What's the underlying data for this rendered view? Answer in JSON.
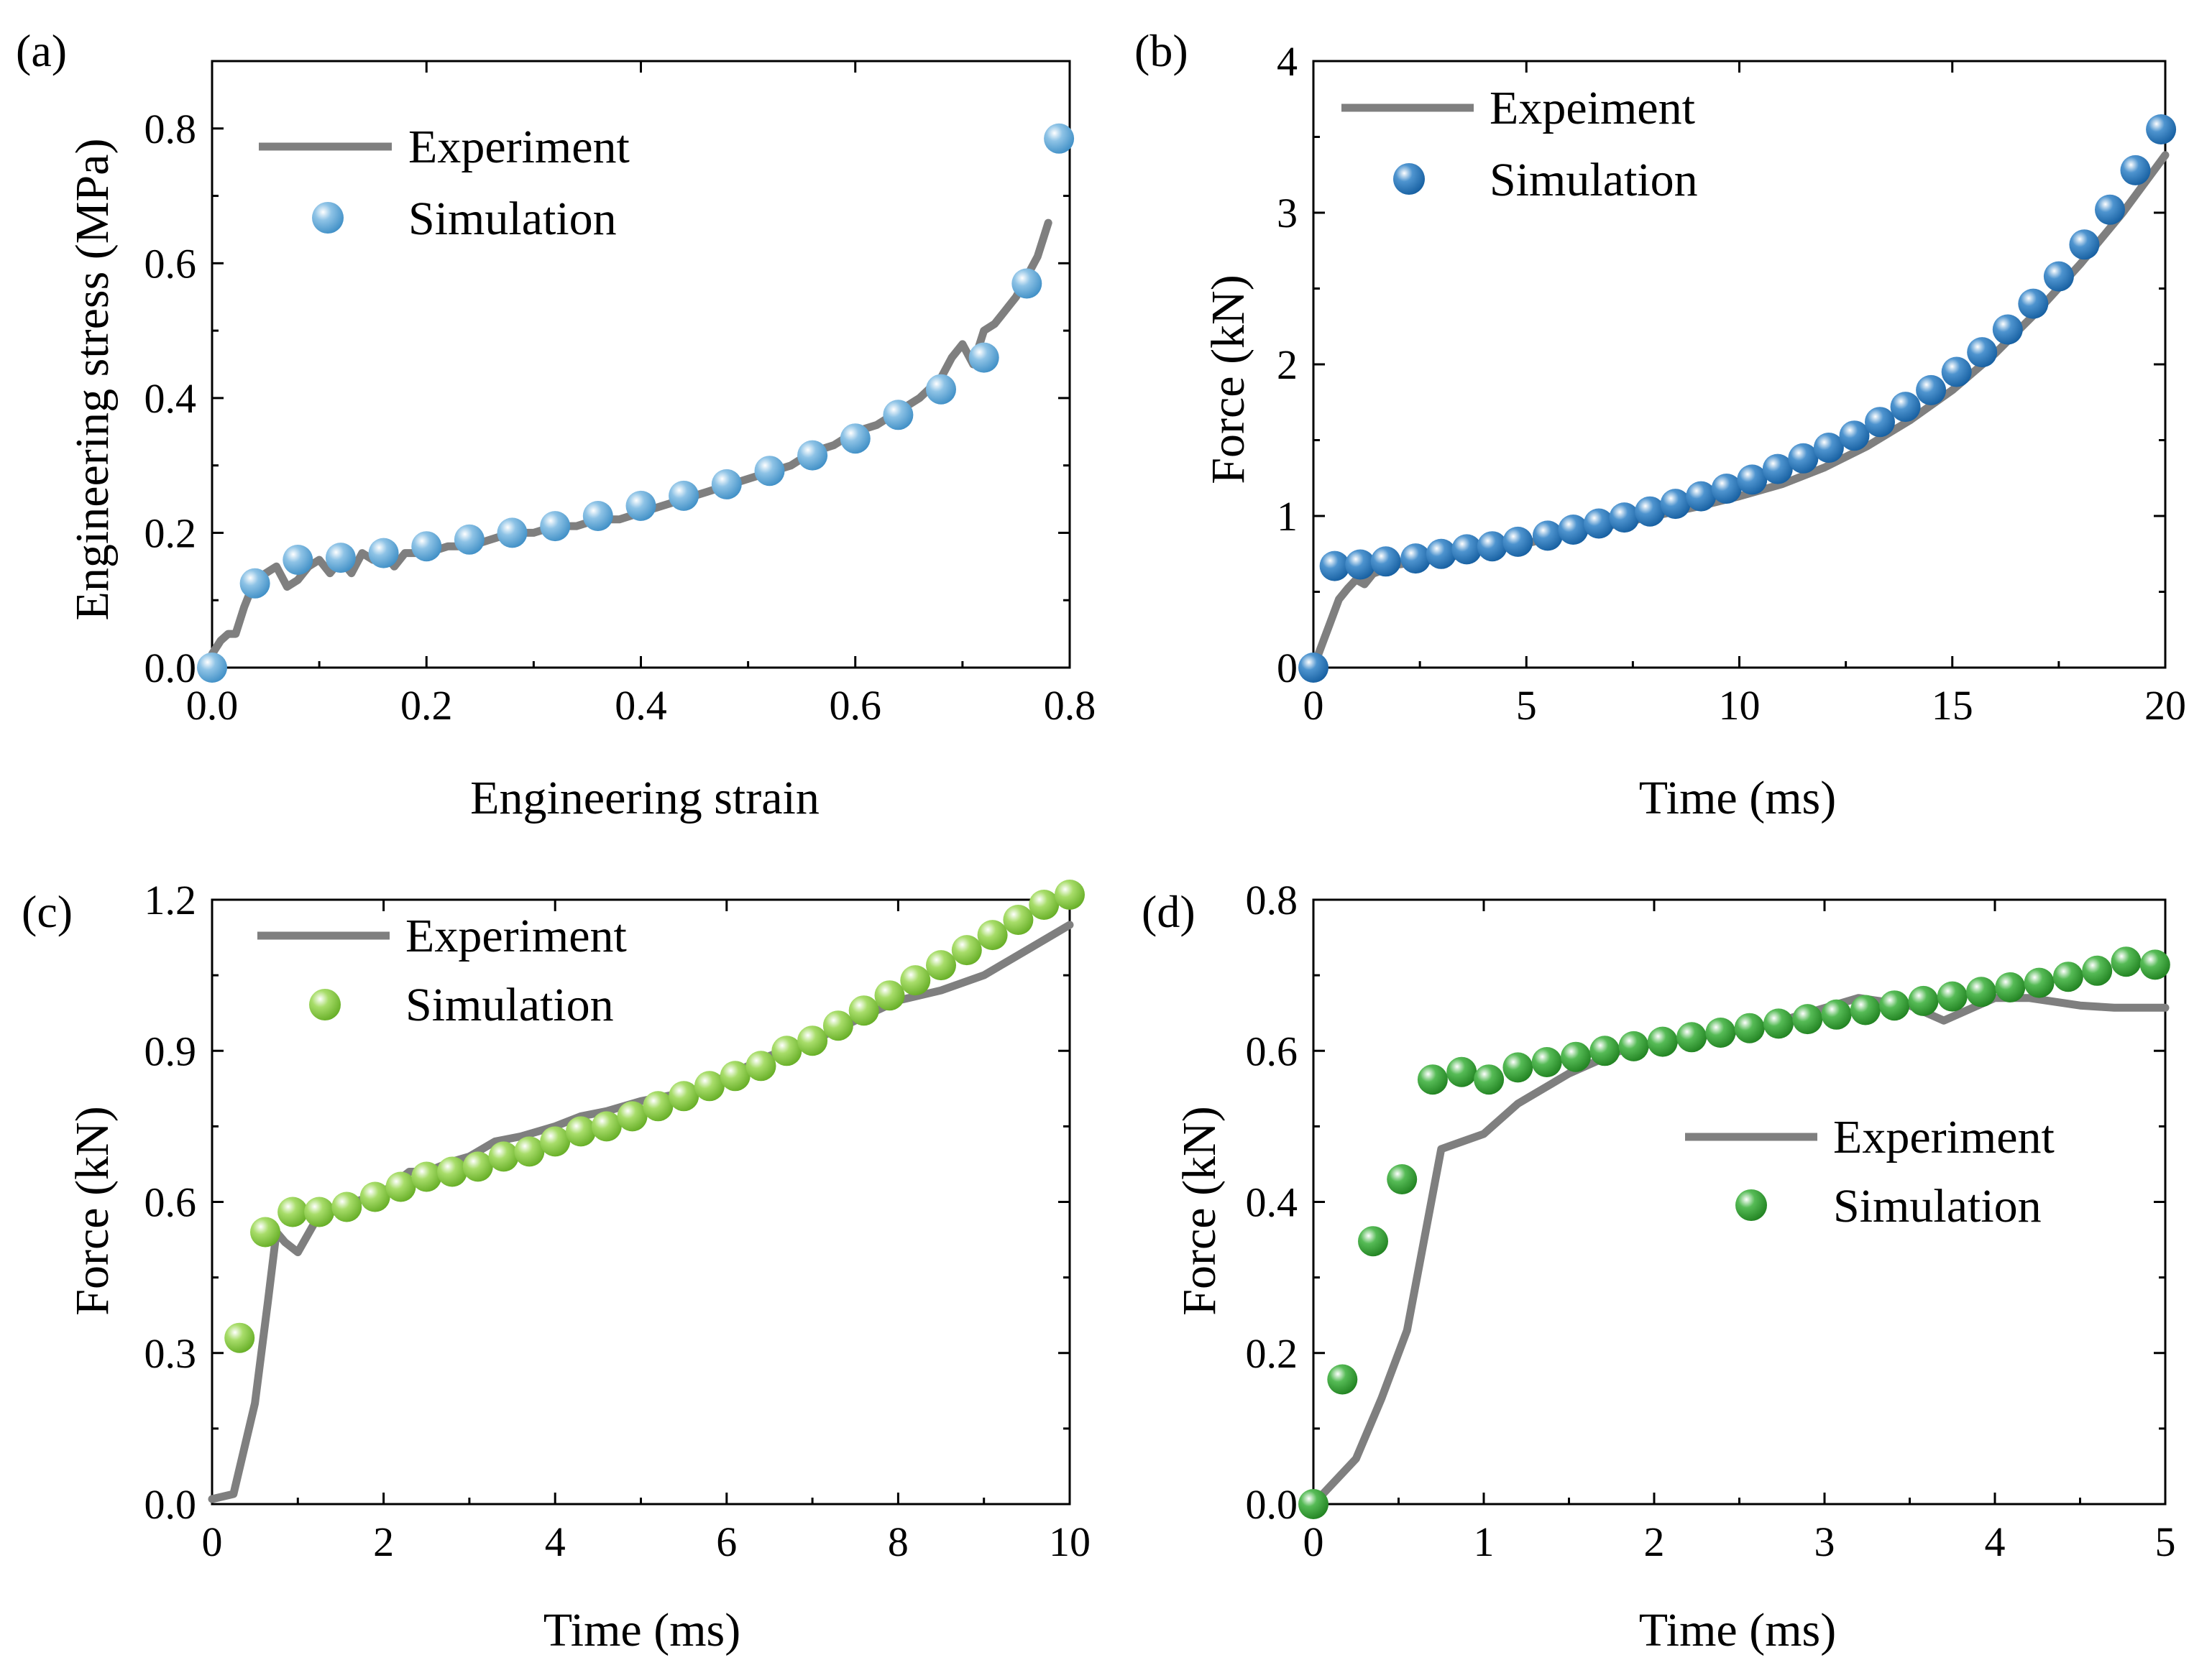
{
  "chart_data": [
    {
      "panel": "(a)",
      "type": "line+scatter",
      "xlabel": "Engineering strain",
      "ylabel": "Engineering stress (MPa)",
      "xlim": [
        0,
        0.8
      ],
      "ylim": [
        0,
        0.9
      ],
      "xticks": [
        0,
        0.2,
        0.4,
        0.6,
        0.8
      ],
      "xtick_labels": [
        "0.0",
        "0.2",
        "0.4",
        "0.6",
        "0.8"
      ],
      "yticks": [
        0,
        0.2,
        0.4,
        0.6,
        0.8
      ],
      "ytick_labels": [
        "0.0",
        "0.2",
        "0.4",
        "0.6",
        "0.8"
      ],
      "legend": {
        "position": "top-left",
        "entries": [
          "Experiment",
          "Simulation"
        ]
      },
      "series": [
        {
          "name": "Experiment",
          "kind": "line",
          "color": "#7f7f7f",
          "x": [
            0,
            0.008,
            0.015,
            0.022,
            0.03,
            0.04,
            0.05,
            0.06,
            0.07,
            0.08,
            0.09,
            0.1,
            0.11,
            0.12,
            0.13,
            0.14,
            0.15,
            0.16,
            0.17,
            0.18,
            0.2,
            0.22,
            0.24,
            0.26,
            0.28,
            0.3,
            0.32,
            0.34,
            0.36,
            0.38,
            0.4,
            0.42,
            0.44,
            0.46,
            0.48,
            0.5,
            0.52,
            0.54,
            0.56,
            0.58,
            0.6,
            0.62,
            0.64,
            0.66,
            0.68,
            0.69,
            0.7,
            0.71,
            0.72,
            0.73,
            0.74,
            0.75,
            0.76,
            0.77,
            0.78
          ],
          "y": [
            0.02,
            0.04,
            0.05,
            0.05,
            0.09,
            0.13,
            0.14,
            0.15,
            0.12,
            0.13,
            0.15,
            0.16,
            0.14,
            0.16,
            0.14,
            0.17,
            0.16,
            0.17,
            0.15,
            0.17,
            0.17,
            0.18,
            0.18,
            0.19,
            0.2,
            0.2,
            0.21,
            0.21,
            0.22,
            0.22,
            0.23,
            0.24,
            0.25,
            0.26,
            0.27,
            0.28,
            0.29,
            0.3,
            0.32,
            0.33,
            0.35,
            0.36,
            0.38,
            0.4,
            0.43,
            0.46,
            0.48,
            0.45,
            0.5,
            0.51,
            0.53,
            0.55,
            0.58,
            0.61,
            0.66
          ]
        },
        {
          "name": "Simulation",
          "kind": "scatter",
          "color": "#4d9fd2",
          "x": [
            0,
            0.04,
            0.08,
            0.12,
            0.16,
            0.2,
            0.24,
            0.28,
            0.32,
            0.36,
            0.4,
            0.44,
            0.48,
            0.52,
            0.56,
            0.6,
            0.64,
            0.68,
            0.72,
            0.76,
            0.79
          ],
          "y": [
            0,
            0.125,
            0.16,
            0.163,
            0.17,
            0.18,
            0.19,
            0.2,
            0.21,
            0.225,
            0.24,
            0.255,
            0.272,
            0.292,
            0.315,
            0.34,
            0.375,
            0.413,
            0.46,
            0.57,
            0.785
          ]
        }
      ]
    },
    {
      "panel": "(b)",
      "type": "line+scatter",
      "xlabel": "Time (ms)",
      "ylabel": "Force (kN)",
      "xlim": [
        0,
        20
      ],
      "ylim": [
        0,
        4
      ],
      "xticks": [
        0,
        5,
        10,
        15,
        20
      ],
      "xtick_labels": [
        "0",
        "5",
        "10",
        "15",
        "20"
      ],
      "yticks": [
        0,
        1,
        2,
        3,
        4
      ],
      "ytick_labels": [
        "0",
        "1",
        "2",
        "3",
        "4"
      ],
      "legend": {
        "position": "top-left",
        "entries": [
          "Expeiment",
          "Simulation"
        ]
      },
      "series": [
        {
          "name": "Expeiment",
          "kind": "line",
          "color": "#7f7f7f",
          "x": [
            0,
            0.2,
            0.4,
            0.6,
            0.8,
            1.0,
            1.2,
            1.4,
            2,
            3,
            4,
            5,
            6,
            7,
            8,
            9,
            10,
            11,
            12,
            13,
            14,
            15,
            16,
            17,
            18,
            19,
            20
          ],
          "y": [
            0,
            0.15,
            0.3,
            0.45,
            0.52,
            0.58,
            0.55,
            0.62,
            0.68,
            0.72,
            0.77,
            0.82,
            0.88,
            0.94,
            1.0,
            1.06,
            1.13,
            1.21,
            1.32,
            1.46,
            1.63,
            1.83,
            2.07,
            2.35,
            2.66,
            3.0,
            3.38
          ]
        },
        {
          "name": "Simulation",
          "kind": "scatter",
          "color": "#1f6fb4",
          "x": [
            0,
            0.5,
            1.1,
            1.7,
            2.4,
            3.0,
            3.6,
            4.2,
            4.8,
            5.5,
            6.1,
            6.7,
            7.3,
            7.9,
            8.5,
            9.1,
            9.7,
            10.3,
            10.9,
            11.5,
            12.1,
            12.7,
            13.3,
            13.9,
            14.5,
            15.1,
            15.7,
            16.3,
            16.9,
            17.5,
            18.1,
            18.7,
            19.3,
            19.9
          ],
          "y": [
            0,
            0.67,
            0.68,
            0.7,
            0.72,
            0.75,
            0.78,
            0.8,
            0.83,
            0.87,
            0.91,
            0.95,
            0.99,
            1.03,
            1.08,
            1.13,
            1.18,
            1.24,
            1.31,
            1.38,
            1.45,
            1.53,
            1.62,
            1.72,
            1.83,
            1.95,
            2.08,
            2.23,
            2.4,
            2.58,
            2.79,
            3.02,
            3.28,
            3.55
          ]
        }
      ]
    },
    {
      "panel": "(c)",
      "type": "line+scatter",
      "xlabel": "Time (ms)",
      "ylabel": "Force (kN)",
      "xlim": [
        0,
        10
      ],
      "ylim": [
        0,
        1.2
      ],
      "xticks": [
        0,
        2,
        4,
        6,
        8,
        10
      ],
      "xtick_labels": [
        "0",
        "2",
        "4",
        "6",
        "8",
        "10"
      ],
      "yticks": [
        0,
        0.3,
        0.6,
        0.9,
        1.2
      ],
      "ytick_labels": [
        "0.0",
        "0.3",
        "0.6",
        "0.9",
        "1.2"
      ],
      "legend": {
        "position": "top-left",
        "entries": [
          "Experiment",
          "Simulation"
        ]
      },
      "series": [
        {
          "name": "Experiment",
          "kind": "line",
          "color": "#7f7f7f",
          "x": [
            0,
            0.25,
            0.5,
            0.65,
            0.75,
            0.85,
            1.0,
            1.2,
            1.5,
            2.0,
            2.3,
            2.5,
            2.8,
            3.0,
            3.3,
            3.6,
            4.0,
            4.3,
            4.6,
            5.0,
            5.3,
            5.6,
            6.0,
            6.5,
            7.0,
            7.5,
            8.0,
            8.5,
            9.0,
            9.5,
            10.0
          ],
          "y": [
            0.01,
            0.02,
            0.2,
            0.4,
            0.54,
            0.52,
            0.5,
            0.56,
            0.59,
            0.62,
            0.66,
            0.66,
            0.68,
            0.69,
            0.72,
            0.73,
            0.75,
            0.77,
            0.78,
            0.8,
            0.81,
            0.82,
            0.85,
            0.89,
            0.92,
            0.96,
            1.0,
            1.02,
            1.05,
            1.1,
            1.15
          ]
        },
        {
          "name": "Simulation",
          "kind": "scatter",
          "color": "#7ec636",
          "x": [
            0.32,
            0.62,
            0.94,
            1.25,
            1.57,
            1.9,
            2.2,
            2.5,
            2.8,
            3.1,
            3.4,
            3.7,
            4.0,
            4.3,
            4.6,
            4.9,
            5.2,
            5.5,
            5.8,
            6.1,
            6.4,
            6.7,
            7.0,
            7.3,
            7.6,
            7.9,
            8.2,
            8.5,
            8.8,
            9.1,
            9.4,
            9.7,
            10.0
          ],
          "y": [
            0.33,
            0.54,
            0.58,
            0.58,
            0.59,
            0.61,
            0.63,
            0.65,
            0.66,
            0.67,
            0.69,
            0.7,
            0.72,
            0.74,
            0.75,
            0.77,
            0.79,
            0.81,
            0.83,
            0.85,
            0.87,
            0.9,
            0.92,
            0.95,
            0.98,
            1.01,
            1.04,
            1.07,
            1.1,
            1.13,
            1.16,
            1.19,
            1.21
          ]
        }
      ]
    },
    {
      "panel": "(d)",
      "type": "line+scatter",
      "xlabel": "Time (ms)",
      "ylabel": "Force (kN)",
      "xlim": [
        0,
        5
      ],
      "ylim": [
        0,
        0.8
      ],
      "xticks": [
        0,
        1,
        2,
        3,
        4,
        5
      ],
      "xtick_labels": [
        "0",
        "1",
        "2",
        "3",
        "4",
        "5"
      ],
      "yticks": [
        0,
        0.2,
        0.4,
        0.6,
        0.8
      ],
      "ytick_labels": [
        "0.0",
        "0.2",
        "0.4",
        "0.6",
        "0.8"
      ],
      "legend": {
        "position": "center-right",
        "entries": [
          "Experiment",
          "Simulation"
        ]
      },
      "series": [
        {
          "name": "Experiment",
          "kind": "line",
          "color": "#7f7f7f",
          "x": [
            0,
            0.25,
            0.4,
            0.55,
            0.75,
            1.0,
            1.2,
            1.5,
            1.8,
            2.0,
            2.3,
            2.6,
            2.9,
            3.2,
            3.5,
            3.7,
            4.0,
            4.2,
            4.5,
            4.7,
            5.0
          ],
          "y": [
            0.0,
            0.06,
            0.14,
            0.23,
            0.47,
            0.49,
            0.53,
            0.57,
            0.6,
            0.61,
            0.62,
            0.63,
            0.65,
            0.67,
            0.66,
            0.64,
            0.67,
            0.67,
            0.66,
            0.657,
            0.657
          ]
        },
        {
          "name": "Simulation",
          "kind": "scatter",
          "color": "#2e9b2e",
          "x": [
            0,
            0.17,
            0.35,
            0.52,
            0.7,
            0.87,
            1.03,
            1.2,
            1.37,
            1.54,
            1.71,
            1.88,
            2.05,
            2.22,
            2.39,
            2.56,
            2.73,
            2.9,
            3.07,
            3.24,
            3.41,
            3.58,
            3.75,
            3.92,
            4.09,
            4.26,
            4.43,
            4.6,
            4.77,
            4.94
          ],
          "y": [
            0,
            0.165,
            0.348,
            0.43,
            0.562,
            0.572,
            0.562,
            0.578,
            0.585,
            0.592,
            0.6,
            0.606,
            0.612,
            0.618,
            0.624,
            0.63,
            0.636,
            0.642,
            0.648,
            0.654,
            0.66,
            0.666,
            0.672,
            0.678,
            0.684,
            0.69,
            0.698,
            0.706,
            0.718,
            0.714
          ]
        }
      ]
    }
  ]
}
